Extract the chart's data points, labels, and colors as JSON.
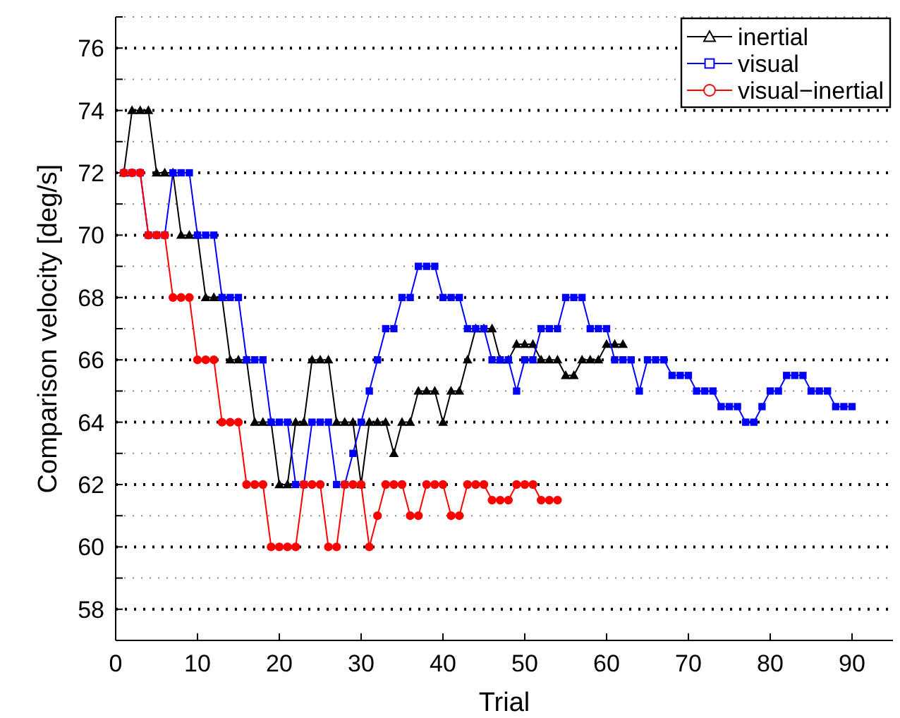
{
  "chart_data": {
    "type": "line",
    "xlabel": "Trial",
    "ylabel": "Comparison velocity [deg/s]",
    "xlim": [
      0,
      95
    ],
    "xticks": [
      0,
      10,
      20,
      30,
      40,
      50,
      60,
      70,
      80,
      90
    ],
    "ylim": [
      57,
      77
    ],
    "yticks": [
      {
        "value": 57,
        "label": null
      },
      58,
      {
        "value": 59,
        "label": null
      },
      60,
      {
        "value": 61,
        "label": null
      },
      62,
      {
        "value": 63,
        "label": null
      },
      64,
      {
        "value": 65,
        "label": null
      },
      66,
      {
        "value": 67,
        "label": null
      },
      68,
      {
        "value": 69,
        "label": null
      },
      70,
      {
        "value": 71,
        "label": null
      },
      72,
      {
        "value": 73,
        "label": null
      },
      74,
      {
        "value": 75,
        "label": null
      },
      76,
      {
        "value": 77,
        "label": null
      }
    ],
    "grid": "y",
    "legend": "top right",
    "line_style": "solid",
    "series": [
      {
        "name": "inertial",
        "color": "#000000",
        "marker": "triangle",
        "x": [
          1,
          2,
          3,
          4,
          5,
          6,
          7,
          8,
          9,
          10,
          11,
          12,
          13,
          14,
          15,
          16,
          17,
          18,
          19,
          20,
          21,
          22,
          23,
          24,
          25,
          26,
          27,
          28,
          29,
          30,
          31,
          32,
          33,
          34,
          35,
          36,
          37,
          38,
          39,
          40,
          41,
          42,
          43,
          44,
          45,
          46,
          47,
          48,
          49,
          50,
          51,
          52,
          53,
          54,
          55,
          56,
          57,
          58,
          59,
          60,
          61,
          62
        ],
        "values": [
          72,
          74,
          74,
          74,
          72,
          72,
          72,
          70,
          70,
          70,
          68,
          68,
          68,
          66,
          66,
          66,
          64,
          64,
          64,
          62,
          62,
          64,
          64,
          66,
          66,
          66,
          64,
          64,
          64,
          62,
          64,
          64,
          64,
          63,
          64,
          64,
          65,
          65,
          65,
          64,
          65,
          65,
          66,
          67,
          67,
          67,
          66,
          66,
          66.5,
          66.5,
          66.5,
          66,
          66,
          66,
          65.5,
          65.5,
          66,
          66,
          66,
          66.5,
          66.5,
          66.5
        ]
      },
      {
        "name": "visual",
        "color": "#0000ff",
        "marker": "square",
        "x": [
          1,
          2,
          3,
          4,
          5,
          6,
          7,
          8,
          9,
          10,
          11,
          12,
          13,
          14,
          15,
          16,
          17,
          18,
          19,
          20,
          21,
          22,
          23,
          24,
          25,
          26,
          27,
          28,
          29,
          30,
          31,
          32,
          33,
          34,
          35,
          36,
          37,
          38,
          39,
          40,
          41,
          42,
          43,
          44,
          45,
          46,
          47,
          48,
          49,
          50,
          51,
          52,
          53,
          54,
          55,
          56,
          57,
          58,
          59,
          60,
          61,
          62,
          63,
          64,
          65,
          66,
          67,
          68,
          69,
          70,
          71,
          72,
          73,
          74,
          75,
          76,
          77,
          78,
          79,
          80,
          81,
          82,
          83,
          84,
          85,
          86,
          87,
          88,
          89,
          90
        ],
        "values": [
          72,
          72,
          72,
          70,
          70,
          70,
          72,
          72,
          72,
          70,
          70,
          70,
          68,
          68,
          68,
          66,
          66,
          66,
          64,
          64,
          64,
          62,
          62,
          64,
          64,
          64,
          62,
          62,
          63,
          64,
          65,
          66,
          67,
          67,
          68,
          68,
          69,
          69,
          69,
          68,
          68,
          68,
          67,
          67,
          67,
          66,
          66,
          66,
          65,
          66,
          66,
          67,
          67,
          67,
          68,
          68,
          68,
          67,
          67,
          67,
          66,
          66,
          66,
          65,
          66,
          66,
          66,
          65.5,
          65.5,
          65.5,
          65,
          65,
          65,
          64.5,
          64.5,
          64.5,
          64,
          64,
          64.5,
          65,
          65,
          65.5,
          65.5,
          65.5,
          65,
          65,
          65,
          64.5,
          64.5,
          64.5
        ]
      },
      {
        "name": "visual−inertial",
        "color": "#ff0000",
        "marker": "circle",
        "x": [
          1,
          2,
          3,
          4,
          5,
          6,
          7,
          8,
          9,
          10,
          11,
          12,
          13,
          14,
          15,
          16,
          17,
          18,
          19,
          20,
          21,
          22,
          23,
          24,
          25,
          26,
          27,
          28,
          29,
          30,
          31,
          32,
          33,
          34,
          35,
          36,
          37,
          38,
          39,
          40,
          41,
          42,
          43,
          44,
          45,
          46,
          47,
          48,
          49,
          50,
          51,
          52,
          53,
          54
        ],
        "values": [
          72,
          72,
          72,
          70,
          70,
          70,
          68,
          68,
          68,
          66,
          66,
          66,
          64,
          64,
          64,
          62,
          62,
          62,
          60,
          60,
          60,
          60,
          62,
          62,
          62,
          60,
          60,
          62,
          62,
          62,
          60,
          61,
          62,
          62,
          62,
          61,
          61,
          62,
          62,
          62,
          61,
          61,
          62,
          62,
          62,
          61.5,
          61.5,
          61.5,
          62,
          62,
          62,
          61.5,
          61.5,
          61.5
        ]
      }
    ]
  }
}
